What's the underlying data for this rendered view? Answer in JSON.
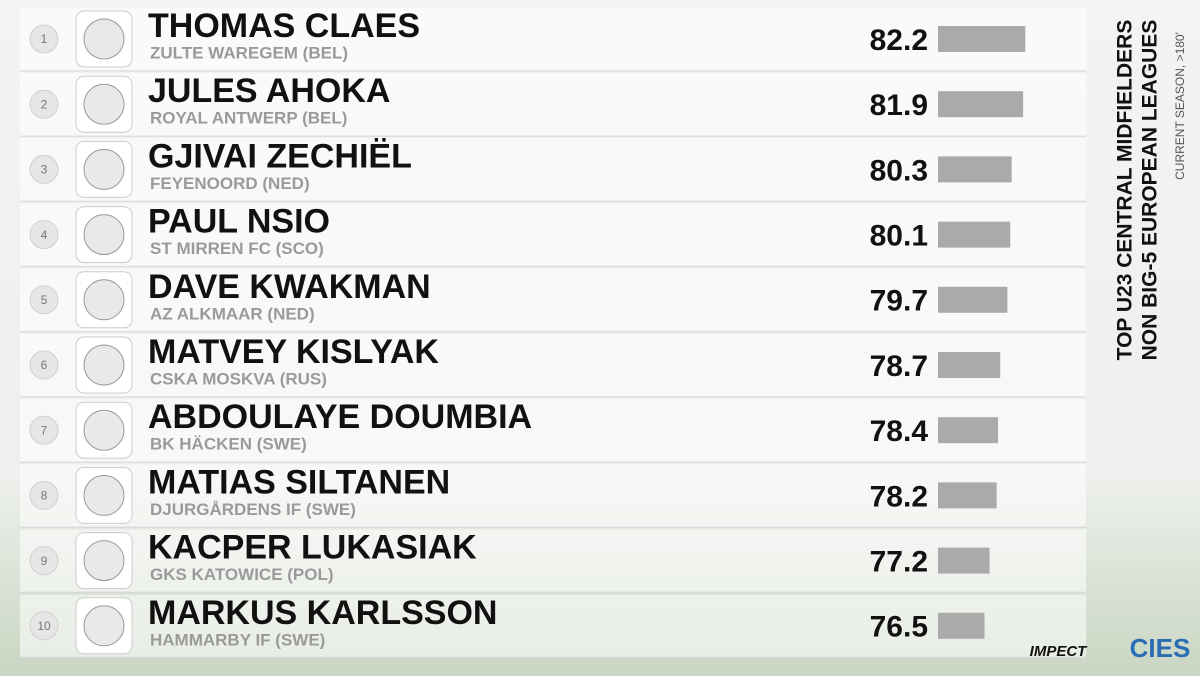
{
  "chart_data": {
    "type": "ranked-bar",
    "title": [
      "TOP U23 CENTRAL MIDFIELDERS",
      "NON BIG-5 EUROPEAN LEAGUES"
    ],
    "subtitle": "CURRENT SEASON, >180'",
    "ranks": [
      1,
      2,
      3,
      4,
      5,
      6,
      7,
      8,
      9,
      10
    ],
    "categories": [
      "THOMAS CLAES",
      "JULES AHOKA",
      "GJIVAI ZECHIËL",
      "PAUL NSIO",
      "DAVE KWAKMAN",
      "MATVEY KISLYAK",
      "ABDOULAYE DOUMBIA",
      "MATIAS SILTANEN",
      "KACPER LUKASIAK",
      "MARKUS KARLSSON"
    ],
    "clubs": [
      "ZULTE WAREGEM (BEL)",
      "ROYAL ANTWERP (BEL)",
      "FEYENOORD (NED)",
      "ST MIRREN FC (SCO)",
      "AZ ALKMAAR (NED)",
      "CSKA MOSKVA (RUS)",
      "BK HÄCKEN (SWE)",
      "DJURGÅRDENS IF (SWE)",
      "GKS KATOWICE (POL)",
      "HAMMARBY IF (SWE)"
    ],
    "values": [
      82.2,
      81.9,
      80.3,
      80.1,
      79.7,
      78.7,
      78.4,
      78.2,
      77.2,
      76.5
    ],
    "color": "#aaaaaa",
    "xlim": [
      70,
      83
    ],
    "brands": [
      "IMPECT",
      "CIES"
    ]
  }
}
